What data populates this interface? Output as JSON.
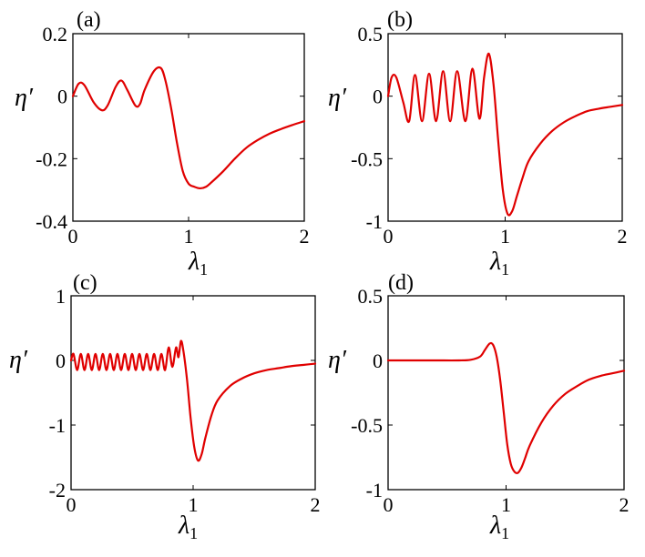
{
  "figure": {
    "line_color": "#e00000",
    "x_label_main": "λ",
    "x_label_sub": "1",
    "y_label": "η′"
  },
  "chart_data": [
    {
      "panel": "(a)",
      "type": "line",
      "xlim": [
        0,
        2
      ],
      "ylim": [
        -0.4,
        0.2
      ],
      "xticks": [
        "0",
        "1",
        "2"
      ],
      "yticks": [
        "0.2",
        "0",
        "-0.2",
        "-0.4"
      ],
      "series": [
        {
          "x": [
            0,
            0.05,
            0.1,
            0.18,
            0.25,
            0.3,
            0.37,
            0.42,
            0.47,
            0.54,
            0.58,
            0.62,
            0.7,
            0.76,
            0.8,
            0.85,
            0.9,
            0.95,
            1.0,
            1.05,
            1.1,
            1.15,
            1.2,
            1.3,
            1.4,
            1.5,
            1.6,
            1.7,
            1.8,
            1.9,
            2.0
          ],
          "y": [
            0.0,
            0.04,
            0.035,
            -0.02,
            -0.045,
            -0.03,
            0.03,
            0.05,
            0.02,
            -0.03,
            -0.025,
            0.02,
            0.08,
            0.09,
            0.05,
            -0.04,
            -0.15,
            -0.24,
            -0.28,
            -0.29,
            -0.295,
            -0.29,
            -0.275,
            -0.24,
            -0.2,
            -0.165,
            -0.14,
            -0.12,
            -0.105,
            -0.092,
            -0.08
          ]
        }
      ]
    },
    {
      "panel": "(b)",
      "type": "line",
      "xlim": [
        0,
        2
      ],
      "ylim": [
        -1,
        0.5
      ],
      "xticks": [
        "0",
        "1",
        "2"
      ],
      "yticks": [
        "0.5",
        "0",
        "-0.5",
        "-1"
      ],
      "series": [
        {
          "x": [
            0,
            0.03,
            0.07,
            0.13,
            0.18,
            0.23,
            0.29,
            0.35,
            0.41,
            0.47,
            0.53,
            0.59,
            0.66,
            0.72,
            0.78,
            0.82,
            0.86,
            0.9,
            0.94,
            0.98,
            1.02,
            1.06,
            1.1,
            1.15,
            1.2,
            1.3,
            1.4,
            1.5,
            1.6,
            1.7,
            1.8,
            1.9,
            2.0
          ],
          "y": [
            0.0,
            0.15,
            0.15,
            -0.05,
            -0.2,
            0.17,
            -0.2,
            0.18,
            -0.2,
            0.2,
            -0.2,
            0.2,
            -0.2,
            0.22,
            -0.18,
            0.15,
            0.34,
            0.1,
            -0.35,
            -0.75,
            -0.94,
            -0.92,
            -0.8,
            -0.65,
            -0.52,
            -0.38,
            -0.28,
            -0.21,
            -0.16,
            -0.12,
            -0.1,
            -0.085,
            -0.07
          ]
        }
      ]
    },
    {
      "panel": "(c)",
      "type": "line",
      "xlim": [
        0,
        2
      ],
      "ylim": [
        -2,
        1
      ],
      "xticks": [
        "0",
        "1",
        "2"
      ],
      "yticks": [
        "1",
        "0",
        "-1",
        "-2"
      ],
      "series": [
        {
          "x": [
            0,
            0.02,
            0.05,
            0.08,
            0.11,
            0.14,
            0.17,
            0.2,
            0.23,
            0.26,
            0.29,
            0.32,
            0.35,
            0.38,
            0.41,
            0.44,
            0.47,
            0.5,
            0.53,
            0.56,
            0.59,
            0.62,
            0.65,
            0.68,
            0.71,
            0.74,
            0.77,
            0.8,
            0.83,
            0.86,
            0.88,
            0.9,
            0.92,
            0.95,
            0.98,
            1.01,
            1.04,
            1.07,
            1.1,
            1.15,
            1.2,
            1.3,
            1.4,
            1.5,
            1.6,
            1.7,
            1.8,
            1.9,
            2.0
          ],
          "y": [
            0.0,
            0.1,
            -0.15,
            0.1,
            -0.15,
            0.1,
            -0.15,
            0.1,
            -0.15,
            0.1,
            -0.15,
            0.1,
            -0.15,
            0.1,
            -0.15,
            0.1,
            -0.15,
            0.1,
            -0.15,
            0.1,
            -0.15,
            0.1,
            -0.15,
            0.1,
            -0.15,
            0.1,
            -0.15,
            0.2,
            -0.1,
            0.2,
            0.05,
            0.3,
            0.15,
            -0.3,
            -0.9,
            -1.35,
            -1.55,
            -1.45,
            -1.2,
            -0.85,
            -0.62,
            -0.4,
            -0.28,
            -0.2,
            -0.15,
            -0.12,
            -0.09,
            -0.07,
            -0.05
          ]
        }
      ]
    },
    {
      "panel": "(d)",
      "type": "line",
      "xlim": [
        0,
        2
      ],
      "ylim": [
        -1,
        0.5
      ],
      "xticks": [
        "0",
        "1",
        "2"
      ],
      "yticks": [
        "0.5",
        "0",
        "-0.5",
        "-1"
      ],
      "series": [
        {
          "x": [
            0,
            0.2,
            0.4,
            0.6,
            0.7,
            0.78,
            0.82,
            0.86,
            0.89,
            0.92,
            0.95,
            0.98,
            1.01,
            1.04,
            1.07,
            1.1,
            1.13,
            1.16,
            1.2,
            1.3,
            1.4,
            1.5,
            1.6,
            1.7,
            1.8,
            1.9,
            2.0
          ],
          "y": [
            0.0,
            0.0,
            0.0,
            0.0,
            0.005,
            0.03,
            0.08,
            0.13,
            0.12,
            0.03,
            -0.15,
            -0.4,
            -0.65,
            -0.8,
            -0.86,
            -0.87,
            -0.83,
            -0.76,
            -0.66,
            -0.48,
            -0.35,
            -0.26,
            -0.2,
            -0.15,
            -0.12,
            -0.1,
            -0.08
          ]
        }
      ]
    }
  ]
}
